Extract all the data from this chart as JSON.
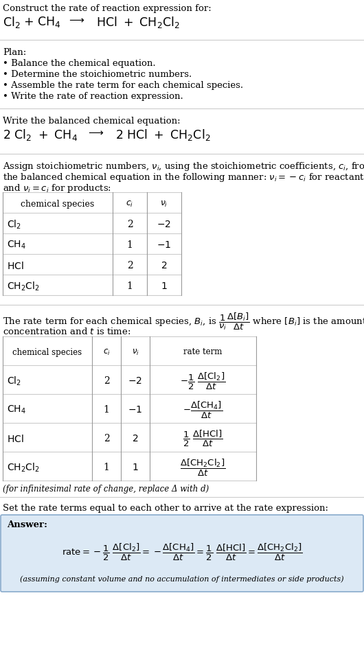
{
  "title_text": "Construct the rate of reaction expression for:",
  "plan_title": "Plan:",
  "plan_steps": [
    "• Balance the chemical equation.",
    "• Determine the stoichiometric numbers.",
    "• Assemble the rate term for each chemical species.",
    "• Write the rate of reaction expression."
  ],
  "balanced_label": "Write the balanced chemical equation:",
  "stoich_intro_1": "Assign stoichiometric numbers, $\\nu_i$, using the stoichiometric coefficients, $c_i$, from",
  "stoich_intro_2": "the balanced chemical equation in the following manner: $\\nu_i = -c_i$ for reactants",
  "stoich_intro_3": "and $\\nu_i = c_i$ for products:",
  "rate_intro_1": "The rate term for each chemical species, $B_i$, is",
  "rate_intro_2": "concentration and $t$ is time:",
  "infinitesimal_note": "(for infinitesimal rate of change, replace Δ with d)",
  "set_equal_text": "Set the rate terms equal to each other to arrive at the rate expression:",
  "answer_label": "Answer:",
  "answer_note": "(assuming constant volume and no accumulation of intermediates or side products)",
  "bg_color": "#ffffff",
  "answer_box_color": "#dce9f5",
  "table_line_color": "#999999",
  "text_color": "#000000",
  "sep_color": "#cccccc",
  "font_size": 10.0,
  "small_font_size": 9.5
}
